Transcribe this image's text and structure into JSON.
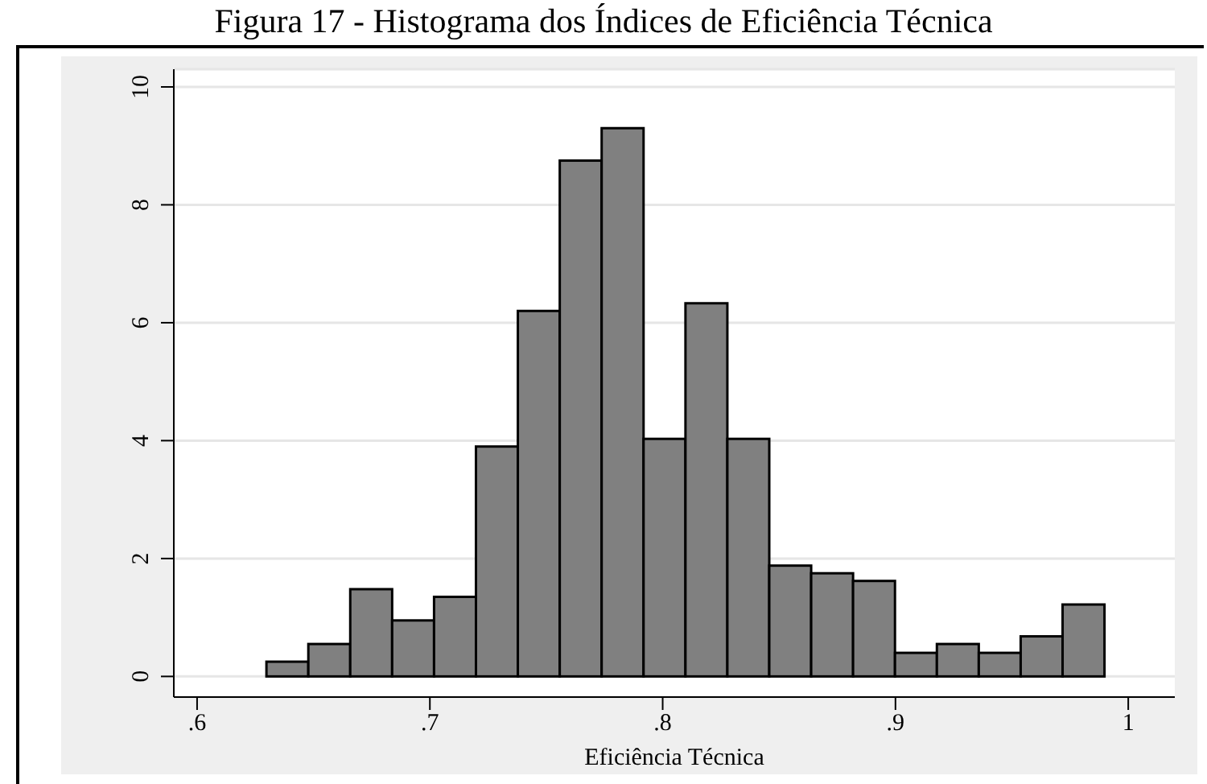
{
  "chart_data": {
    "type": "histogram",
    "title": "Figura 17 - Histograma dos Índices de Eficiência Técnica",
    "xlabel": "Eficiência Técnica",
    "bins": [
      0.63,
      0.648,
      0.666,
      0.684,
      0.702,
      0.72,
      0.738,
      0.756,
      0.774,
      0.792,
      0.81,
      0.828,
      0.846,
      0.864,
      0.882,
      0.9,
      0.918,
      0.936,
      0.954,
      0.972,
      0.99
    ],
    "values": [
      0.25,
      0.55,
      1.48,
      0.95,
      1.35,
      3.9,
      6.2,
      8.75,
      9.3,
      4.03,
      6.33,
      4.03,
      1.88,
      1.75,
      1.62,
      0.4,
      0.55,
      0.4,
      0.68,
      1.22
    ],
    "color": "#808080",
    "xlim": [
      0.59,
      1.02
    ],
    "ylim": [
      -0.35,
      10.3
    ],
    "xticks": [
      {
        "value": 0.6,
        "label": ".6"
      },
      {
        "value": 0.7,
        "label": ".7"
      },
      {
        "value": 0.8,
        "label": ".8"
      },
      {
        "value": 0.9,
        "label": ".9"
      },
      {
        "value": 1,
        "label": "1"
      }
    ],
    "yticks": [
      0,
      2,
      4,
      6,
      8,
      10
    ],
    "grid": "y"
  }
}
